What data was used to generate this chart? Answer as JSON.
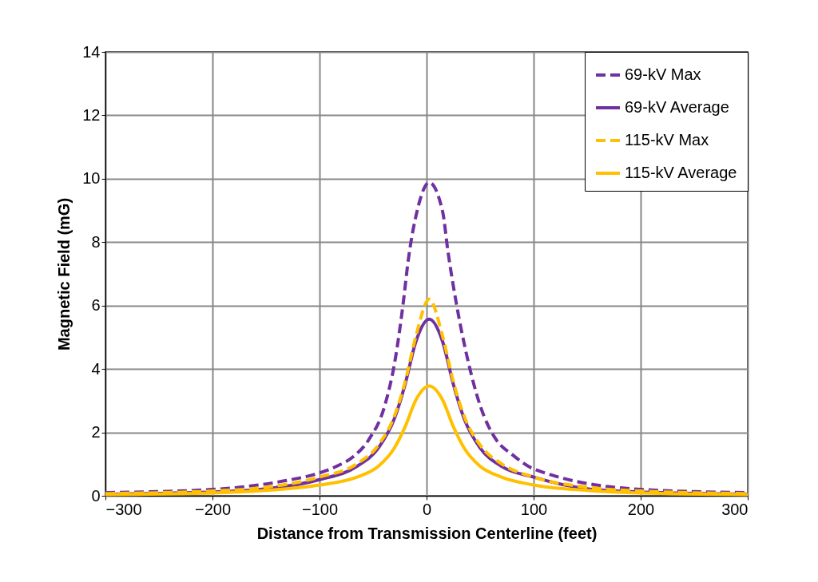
{
  "chart_data": {
    "type": "line",
    "xlabel": "Distance from Transmission Centerline (feet)",
    "ylabel": "Magnetic Field (mG)",
    "xlim": [
      -300,
      300
    ],
    "xticks": [
      -300,
      -200,
      -100,
      0,
      100,
      200,
      300
    ],
    "ylim": [
      0,
      14
    ],
    "yticks": [
      0,
      2,
      4,
      6,
      8,
      10,
      12,
      14
    ],
    "grid": true,
    "legend": "top right",
    "marker": "none",
    "series": [
      {
        "name": "69-kV Max",
        "color": "#7030a0",
        "line_style": "dashed",
        "x": [
          -300,
          -200,
          -133,
          -100,
          -84,
          -69,
          -54,
          -39,
          -29,
          -22,
          -17,
          -9,
          2.5,
          15,
          20,
          28,
          38,
          50,
          65,
          80,
          100,
          200,
          300
        ],
        "values": [
          0.1,
          0.2,
          0.47,
          0.72,
          0.93,
          1.22,
          1.77,
          2.85,
          4.36,
          6.03,
          7.46,
          8.96,
          9.88,
          8.96,
          7.7,
          6.03,
          4.36,
          2.85,
          1.77,
          1.3,
          0.85,
          0.2,
          0.1
        ]
      },
      {
        "name": "69-kV Average",
        "color": "#7030a0",
        "line_style": "solid",
        "x": [
          -300,
          -200,
          -150,
          -100,
          -65,
          -45,
          -30,
          -20,
          -10,
          2.5,
          15,
          25,
          35,
          50,
          70,
          100,
          150,
          200,
          300
        ],
        "values": [
          0.05,
          0.12,
          0.22,
          0.51,
          0.93,
          1.51,
          2.44,
          3.52,
          4.86,
          5.57,
          4.86,
          3.52,
          2.44,
          1.51,
          0.93,
          0.59,
          0.22,
          0.12,
          0.05
        ]
      },
      {
        "name": "115-kV Max",
        "color": "#ffc000",
        "line_style": "dashed",
        "x": [
          -300,
          -200,
          -150,
          -100,
          -65,
          -45,
          -30,
          -20,
          -10,
          2.5,
          15,
          25,
          35,
          50,
          70,
          100,
          150,
          200,
          300
        ],
        "values": [
          0.07,
          0.15,
          0.27,
          0.59,
          1.01,
          1.6,
          2.52,
          3.6,
          5.03,
          6.2,
          5.03,
          3.6,
          2.52,
          1.6,
          1.01,
          0.59,
          0.27,
          0.15,
          0.07
        ]
      },
      {
        "name": "115-kV Average",
        "color": "#ffc000",
        "line_style": "solid",
        "x": [
          -300,
          -200,
          -150,
          -100,
          -65,
          -45,
          -30,
          -20,
          -10,
          2.5,
          15,
          25,
          35,
          50,
          70,
          100,
          150,
          200,
          300
        ],
        "values": [
          0.04,
          0.09,
          0.17,
          0.34,
          0.59,
          0.93,
          1.51,
          2.18,
          3.02,
          3.46,
          3.02,
          2.18,
          1.51,
          0.93,
          0.59,
          0.34,
          0.17,
          0.09,
          0.04
        ]
      }
    ]
  }
}
